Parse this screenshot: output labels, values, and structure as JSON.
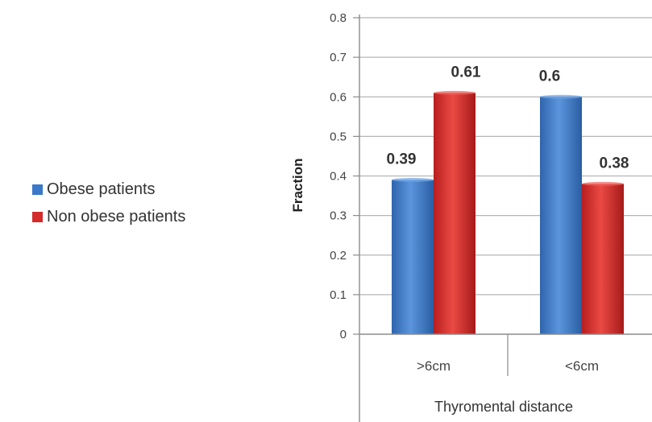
{
  "chart_data": {
    "type": "bar",
    "categories": [
      ">6cm",
      "<6cm"
    ],
    "series": [
      {
        "name": "Obese patients",
        "values": [
          0.39,
          0.6
        ],
        "color": "#3a78c9"
      },
      {
        "name": "Non obese patients",
        "values": [
          0.61,
          0.38
        ],
        "color": "#d42a2a"
      }
    ],
    "data_labels": [
      [
        "0.39",
        "0.6"
      ],
      [
        "0.61",
        "0.38"
      ]
    ],
    "ylabel": "Fraction",
    "xlabel": "Thyromental distance",
    "ylim": [
      0,
      0.8
    ],
    "yticks": [
      "0",
      "0.1",
      "0.2",
      "0.3",
      "0.4",
      "0.5",
      "0.6",
      "0.7",
      "0.8"
    ],
    "grid": true,
    "legend_position": "left"
  }
}
